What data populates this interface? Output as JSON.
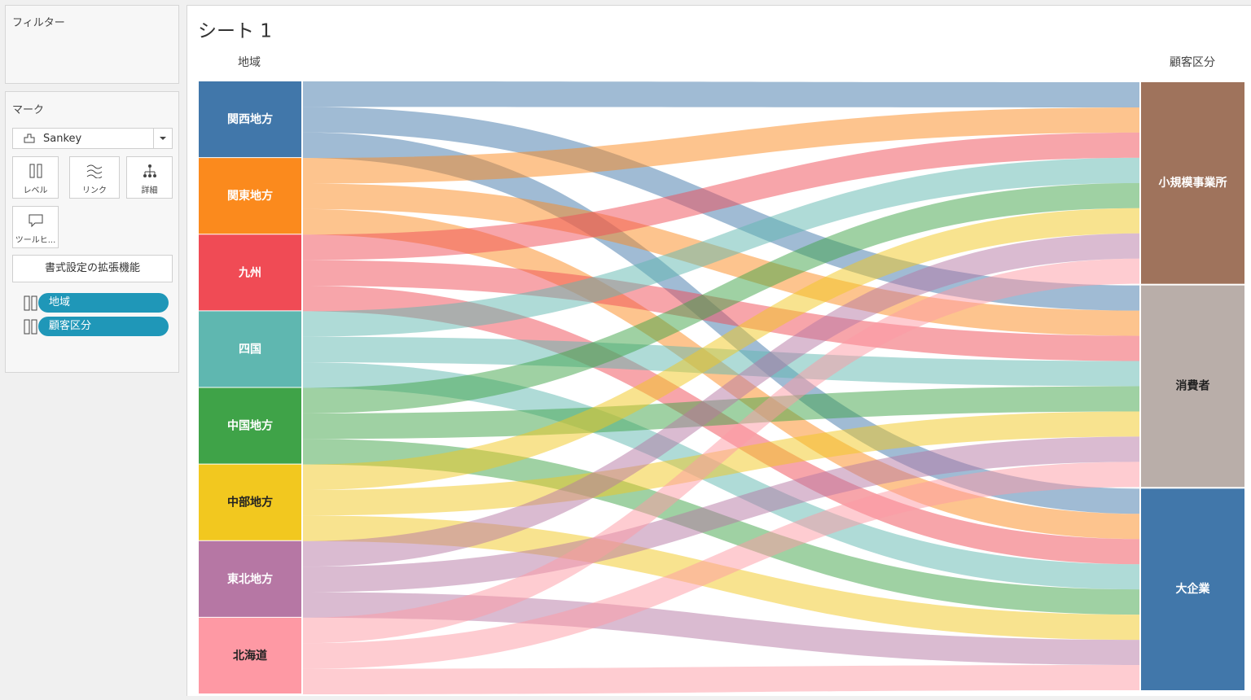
{
  "sidebar": {
    "filters_title": "フィルター",
    "marks_title": "マーク",
    "mark_type": "Sankey",
    "buttons": [
      "レベル",
      "リンク",
      "詳細",
      "ツールヒ..."
    ],
    "format_button": "書式設定の拡張機能",
    "pills": [
      "地域",
      "顧客区分"
    ]
  },
  "chart_data": {
    "type": "sankey",
    "title": "シート 1",
    "source_label": "地域",
    "target_label": "顧客区分",
    "sources": [
      {
        "name": "関西地方",
        "color": "#4177aa"
      },
      {
        "name": "関東地方",
        "color": "#fb8a1d"
      },
      {
        "name": "九州",
        "color": "#f04b55"
      },
      {
        "name": "四国",
        "color": "#5fb7b0"
      },
      {
        "name": "中国地方",
        "color": "#3fa348"
      },
      {
        "name": "中部地方",
        "color": "#f2c81f"
      },
      {
        "name": "東北地方",
        "color": "#b677a4"
      },
      {
        "name": "北海道",
        "color": "#fe99a4"
      }
    ],
    "targets": [
      {
        "name": "小規模事業所",
        "color": "#9f735c"
      },
      {
        "name": "消費者",
        "color": "#b9aea9"
      },
      {
        "name": "大企業",
        "color": "#4177aa"
      }
    ],
    "values": [
      [
        1,
        1,
        1
      ],
      [
        1,
        1,
        1
      ],
      [
        1,
        1,
        1
      ],
      [
        1,
        1,
        1
      ],
      [
        1,
        1,
        1
      ],
      [
        1,
        1,
        1
      ],
      [
        1,
        1,
        1
      ],
      [
        1,
        1,
        1
      ]
    ]
  }
}
